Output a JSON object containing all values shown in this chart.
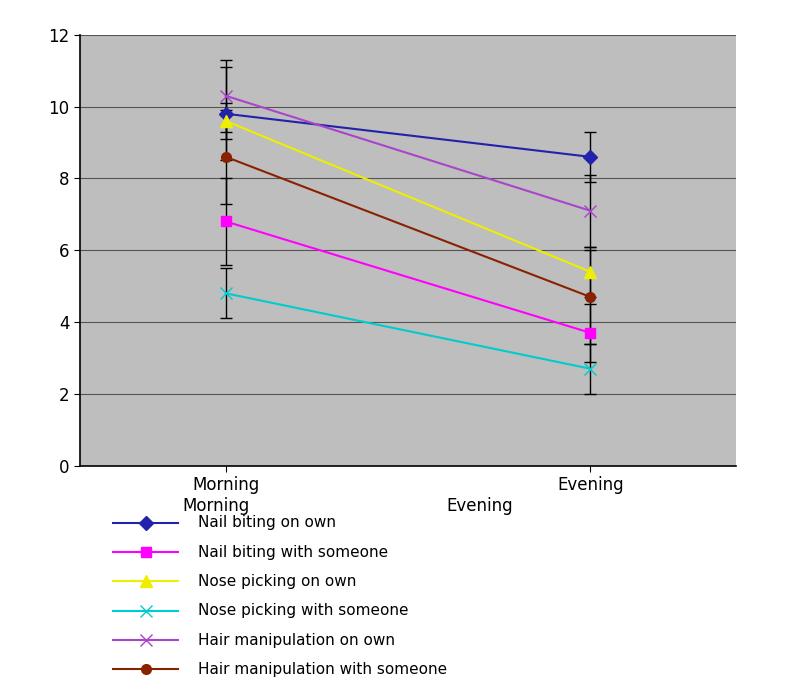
{
  "x_labels": [
    "Morning",
    "Evening"
  ],
  "x_positions": [
    1,
    2
  ],
  "series": [
    {
      "label": "Nail biting on own",
      "color": "#2222AA",
      "marker": "D",
      "markersize": 7,
      "morning_val": 9.8,
      "evening_val": 8.6,
      "morning_err_lo": 1.3,
      "morning_err_hi": 1.3,
      "evening_err_lo": 0.7,
      "evening_err_hi": 0.7
    },
    {
      "label": "Nail biting with someone",
      "color": "#FF00FF",
      "marker": "s",
      "markersize": 7,
      "morning_val": 6.8,
      "evening_val": 3.7,
      "morning_err_lo": 1.2,
      "morning_err_hi": 1.2,
      "evening_err_lo": 0.8,
      "evening_err_hi": 0.8
    },
    {
      "label": "Nose picking on own",
      "color": "#EEEE00",
      "marker": "^",
      "markersize": 8,
      "morning_val": 9.6,
      "evening_val": 5.4,
      "morning_err_lo": 0.5,
      "morning_err_hi": 0.5,
      "evening_err_lo": 0.7,
      "evening_err_hi": 0.7
    },
    {
      "label": "Nose picking with someone",
      "color": "#00CCCC",
      "marker": "x",
      "markersize": 8,
      "morning_val": 4.8,
      "evening_val": 2.7,
      "morning_err_lo": 0.7,
      "morning_err_hi": 0.7,
      "evening_err_lo": 0.7,
      "evening_err_hi": 0.7
    },
    {
      "label": "Hair manipulation on own",
      "color": "#AA44CC",
      "marker": "x",
      "markersize": 8,
      "morning_val": 10.3,
      "evening_val": 7.1,
      "morning_err_lo": 1.0,
      "morning_err_hi": 1.0,
      "evening_err_lo": 1.0,
      "evening_err_hi": 1.0
    },
    {
      "label": "Hair manipulation with someone",
      "color": "#882200",
      "marker": "o",
      "markersize": 7,
      "morning_val": 8.6,
      "evening_val": 4.7,
      "morning_err_lo": 1.3,
      "morning_err_hi": 1.3,
      "evening_err_lo": 1.3,
      "evening_err_hi": 1.3
    }
  ],
  "ylim": [
    0,
    12
  ],
  "yticks": [
    0,
    2,
    4,
    6,
    8,
    10,
    12
  ],
  "plot_bg_color": "#BEBEBE",
  "fig_bg_color": "#FFFFFF",
  "grid_color": "#555555",
  "legend_x_label1": "Morning",
  "legend_x_label2": "Evening"
}
